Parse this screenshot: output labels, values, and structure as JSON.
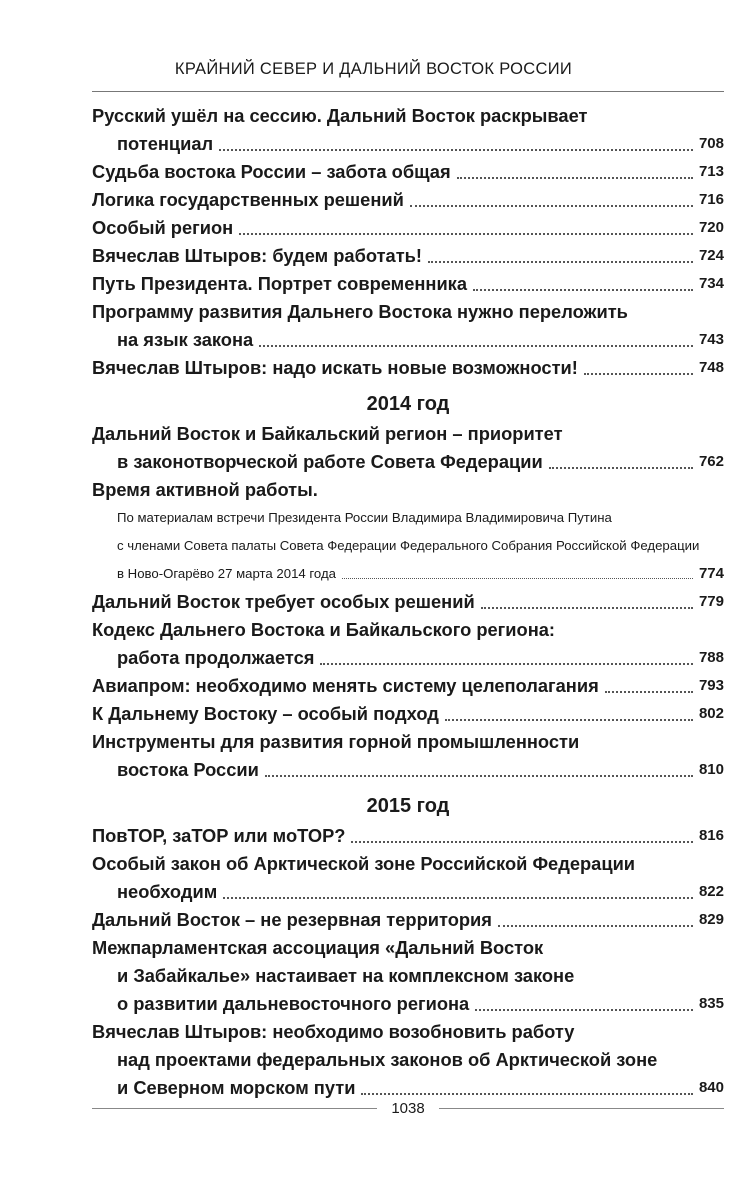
{
  "running_header": "КРАЙНИЙ СЕВЕР И ДАЛЬНИЙ ВОСТОК РОССИИ",
  "page_number": "1038",
  "sections": [
    {
      "year": "",
      "entries": [
        {
          "lines": [
            "Русский ушёл на сессию. Дальний Восток раскрывает",
            "потенциал"
          ],
          "page": "708"
        },
        {
          "lines": [
            "Судьба востока России – забота общая"
          ],
          "page": "713"
        },
        {
          "lines": [
            "Логика государственных решений"
          ],
          "page": "716"
        },
        {
          "lines": [
            "Особый регион"
          ],
          "page": "720"
        },
        {
          "lines": [
            "Вячеслав Штыров: будем работать!"
          ],
          "page": "724"
        },
        {
          "lines": [
            "Путь Президента. Портрет современника"
          ],
          "page": "734"
        },
        {
          "lines": [
            "Программу развития Дальнего Востока нужно переложить",
            "на язык закона"
          ],
          "page": "743"
        },
        {
          "lines": [
            "Вячеслав Штыров: надо искать новые возможности!"
          ],
          "page": "748"
        }
      ]
    },
    {
      "year": "2014 год",
      "entries": [
        {
          "lines": [
            "Дальний Восток и Байкальский регион – приоритет",
            "в законотворческой работе Совета Федерации"
          ],
          "page": "762"
        },
        {
          "lines": [
            "Время активной работы."
          ],
          "sub": [
            "По материалам встречи Президента России Владимира Владимировича Путина",
            "с членами Совета палаты Совета Федерации Федерального Собрания Российской Федерации",
            "в Ново-Огарёво 27 марта 2014 года"
          ],
          "page": "774"
        },
        {
          "lines": [
            "Дальний Восток требует особых решений"
          ],
          "page": "779"
        },
        {
          "lines": [
            "Кодекс Дальнего Востока и Байкальского региона:",
            "работа продолжается"
          ],
          "page": "788"
        },
        {
          "lines": [
            "Авиапром: необходимо менять систему целеполагания"
          ],
          "page": "793"
        },
        {
          "lines": [
            "К Дальнему Востоку – особый подход"
          ],
          "page": "802"
        },
        {
          "lines": [
            "Инструменты для развития горной промышленности",
            "востока России"
          ],
          "page": "810"
        }
      ]
    },
    {
      "year": "2015 год",
      "entries": [
        {
          "lines": [
            "ПовТОР, заТОР или моТОР?"
          ],
          "page": "816"
        },
        {
          "lines": [
            "Особый закон об Арктической зоне Российской Федерации",
            "необходим"
          ],
          "page": "822"
        },
        {
          "lines": [
            "Дальний Восток – не резервная территория"
          ],
          "page": "829"
        },
        {
          "lines": [
            "Межпарламентская ассоциация «Дальний Восток",
            "и Забайкалье» настаивает на комплексном законе",
            "о развитии дальневосточного региона"
          ],
          "page": "835"
        },
        {
          "lines": [
            "Вячеслав Штыров: необходимо возобновить работу",
            "над проектами федеральных законов об Арктической зоне",
            "и Северном морском пути"
          ],
          "page": "840"
        }
      ]
    }
  ]
}
